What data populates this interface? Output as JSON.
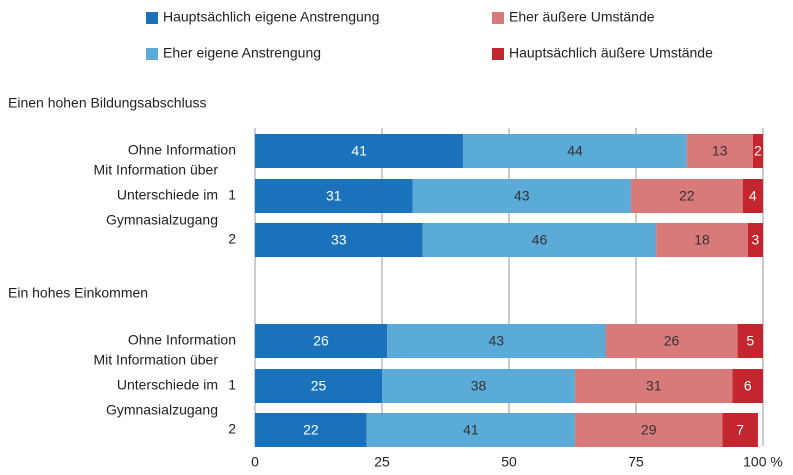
{
  "chart_data": {
    "type": "bar",
    "orientation": "horizontal",
    "stacked": true,
    "series": [
      {
        "name": "Hauptsächlich eigene Anstrengung",
        "color": "#1a73ba"
      },
      {
        "name": "Eher eigene Anstrengung",
        "color": "#5aabd8"
      },
      {
        "name": "Eher äußere Umstände",
        "color": "#d97a7a"
      },
      {
        "name": "Hauptsächlich äußere Umstände",
        "color": "#c3262e"
      }
    ],
    "groups": [
      {
        "title": "Einen hohen Bildungsabschluss",
        "categories": [
          "Ohne Information",
          "1",
          "2"
        ],
        "subgroup_label": [
          "Mit Information über",
          "Unterschiede im",
          "Gymnasialzugang"
        ],
        "series_values": [
          [
            41,
            31,
            33
          ],
          [
            44,
            43,
            46
          ],
          [
            13,
            22,
            18
          ],
          [
            2,
            4,
            3
          ]
        ]
      },
      {
        "title": "Ein hohes Einkommen",
        "categories": [
          "Ohne Information",
          "1",
          "2"
        ],
        "subgroup_label": [
          "Mit Information über",
          "Unterschiede im",
          "Gymnasialzugang"
        ],
        "series_values": [
          [
            26,
            25,
            22
          ],
          [
            43,
            38,
            41
          ],
          [
            26,
            31,
            29
          ],
          [
            5,
            6,
            7
          ]
        ]
      }
    ],
    "xlim": [
      0,
      100
    ],
    "xticks": [
      0,
      25,
      50,
      75,
      {
        "value": 100,
        "label": "100 %"
      }
    ],
    "grid": true
  }
}
